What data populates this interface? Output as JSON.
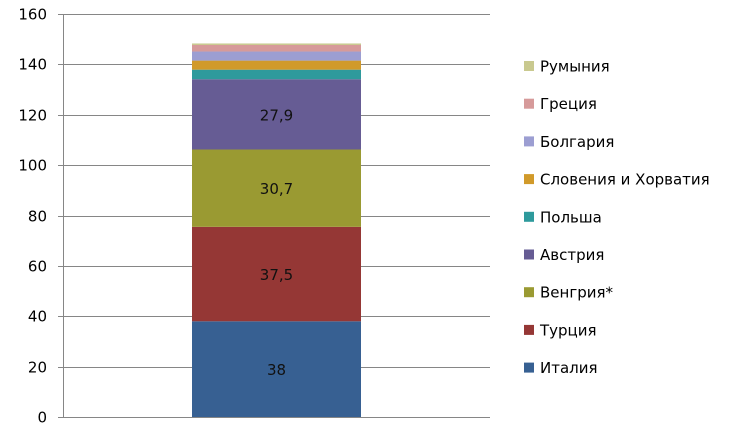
{
  "chart_data": {
    "type": "bar",
    "stacked": true,
    "categories": [
      ""
    ],
    "ylim": [
      0,
      160
    ],
    "yticks": [
      0,
      20,
      40,
      60,
      80,
      100,
      120,
      140,
      160
    ],
    "grid": true,
    "legend_position": "right",
    "series": [
      {
        "name": "Италия",
        "values": [
          38
        ],
        "label": "38",
        "color": "#376092"
      },
      {
        "name": "Турция",
        "values": [
          37.5
        ],
        "label": "37,5",
        "color": "#953735"
      },
      {
        "name": "Венгрия*",
        "values": [
          30.7
        ],
        "label": "30,7",
        "color": "#9a9a32"
      },
      {
        "name": "Австрия",
        "values": [
          27.9
        ],
        "label": "27,9",
        "color": "#665c94"
      },
      {
        "name": "Польша",
        "values": [
          3.8
        ],
        "label": "",
        "color": "#2e9a9c"
      },
      {
        "name": "Словения и Хорватия",
        "values": [
          3.6
        ],
        "label": "",
        "color": "#d19a2a"
      },
      {
        "name": "Болгария",
        "values": [
          3.6
        ],
        "label": "",
        "color": "#9c9ed2"
      },
      {
        "name": "Греция",
        "values": [
          2.6
        ],
        "label": "",
        "color": "#d69a9a"
      },
      {
        "name": "Румыния",
        "values": [
          0.6
        ],
        "label": "",
        "color": "#c9c98f"
      }
    ]
  }
}
